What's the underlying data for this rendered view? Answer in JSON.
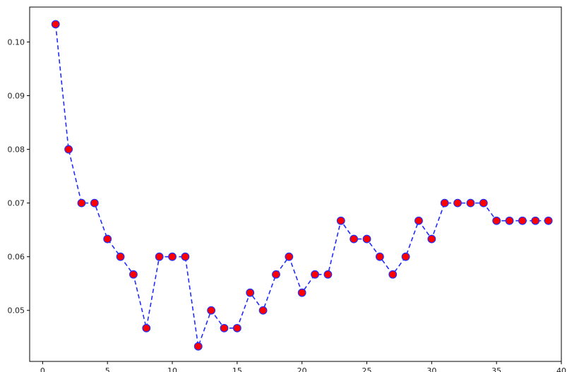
{
  "chart_data": {
    "type": "line",
    "title": "",
    "xlabel": "",
    "ylabel": "",
    "xlim": [
      -1,
      40
    ],
    "ylim": [
      0.0405,
      0.1065
    ],
    "x_ticks": [
      0,
      5,
      10,
      15,
      20,
      25,
      30,
      35,
      40
    ],
    "y_ticks": [
      0.05,
      0.06,
      0.07,
      0.08,
      0.09,
      0.1
    ],
    "x_tick_labels": [
      "0",
      "5",
      "10",
      "15",
      "20",
      "25",
      "30",
      "35",
      "40"
    ],
    "y_tick_labels": [
      "0.05",
      "0.06",
      "0.07",
      "0.08",
      "0.09",
      "0.10"
    ],
    "grid": false,
    "legend": "none",
    "series": [
      {
        "x": [
          1,
          2,
          3,
          4,
          5,
          6,
          7,
          8,
          9,
          10,
          11,
          12,
          13,
          14,
          15,
          16,
          17,
          18,
          19,
          20,
          21,
          22,
          23,
          24,
          25,
          26,
          27,
          28,
          29,
          30,
          31,
          32,
          33,
          34,
          35,
          36,
          37,
          38,
          39
        ],
        "values": [
          0.1033,
          0.08,
          0.07,
          0.07,
          0.0633,
          0.06,
          0.0567,
          0.0467,
          0.06,
          0.06,
          0.06,
          0.0433,
          0.05,
          0.0467,
          0.0467,
          0.0533,
          0.05,
          0.0567,
          0.06,
          0.0533,
          0.0567,
          0.0567,
          0.0667,
          0.0633,
          0.0633,
          0.06,
          0.0567,
          0.06,
          0.0667,
          0.0633,
          0.07,
          0.07,
          0.07,
          0.07,
          0.0667,
          0.0667,
          0.0667,
          0.0667,
          0.0667
        ],
        "line_color": "#1f2dff",
        "line_style": "dashed",
        "marker": "circle",
        "marker_face_color": "#ff0000",
        "marker_edge_color": "#1f2dff"
      }
    ]
  }
}
